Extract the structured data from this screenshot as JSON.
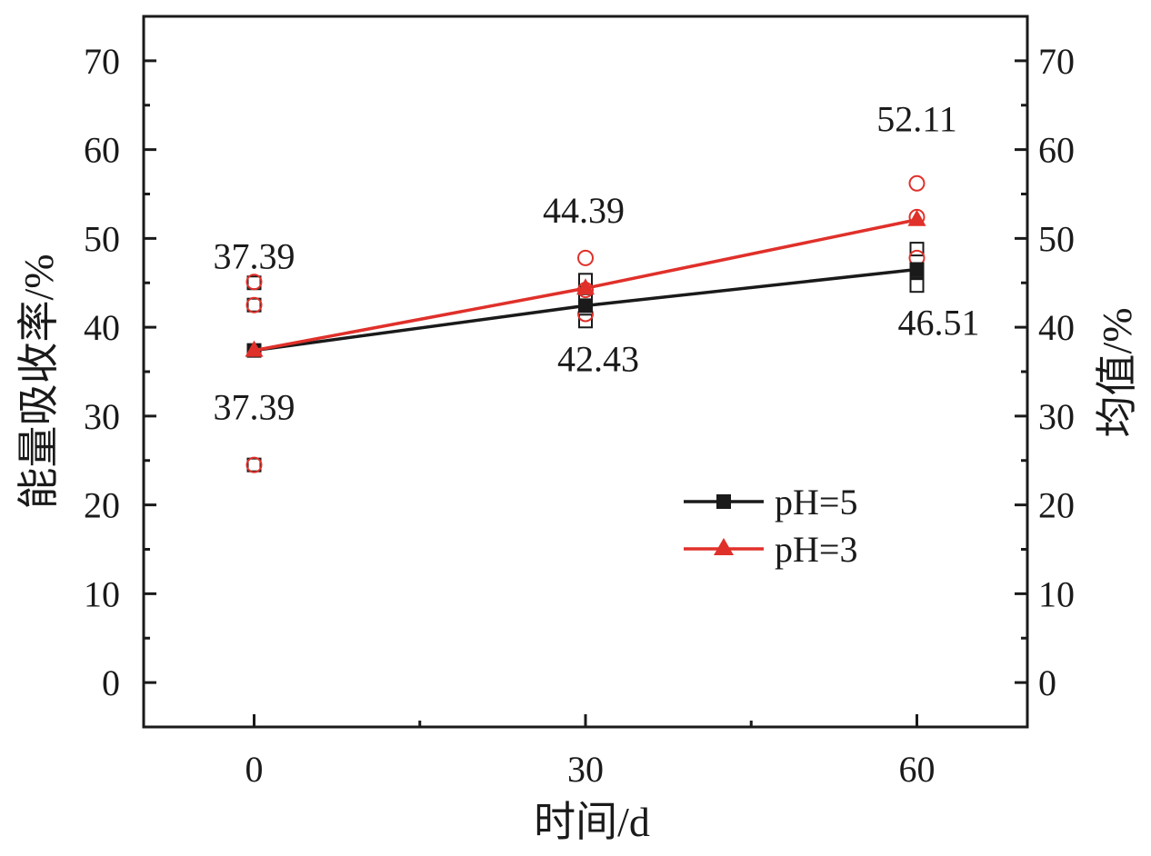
{
  "chart_data": {
    "type": "line",
    "title": "",
    "xlabel": "时间/d",
    "ylabel_left": "能量吸收率/%",
    "ylabel_right": "均值/%",
    "x_ticks": [
      0,
      30,
      60
    ],
    "y_ticks": [
      0,
      10,
      20,
      30,
      40,
      50,
      60,
      70
    ],
    "xlim": [
      -10,
      70
    ],
    "ylim": [
      -5,
      75
    ],
    "grid": false,
    "legend_position": "lower-right",
    "series": [
      {
        "name": "pH=5",
        "color": "#1a1a1a",
        "marker": "square",
        "x": [
          0,
          30,
          60
        ],
        "y": [
          37.39,
          42.43,
          46.51
        ],
        "value_labels": [
          "37.39",
          "42.43",
          "46.51"
        ],
        "samples": [
          {
            "x": 0,
            "y": [
              45.0,
              42.5,
              24.5
            ]
          },
          {
            "x": 30,
            "y": [
              45.3,
              43.0,
              40.7
            ]
          },
          {
            "x": 60,
            "y": [
              48.8,
              46.3,
              44.7
            ]
          }
        ]
      },
      {
        "name": "pH=3",
        "color": "#e0302a",
        "marker": "triangle",
        "x": [
          0,
          30,
          60
        ],
        "y": [
          37.39,
          44.39,
          52.11
        ],
        "value_labels": [
          "37.39",
          "44.39",
          "52.11"
        ],
        "samples": [
          {
            "x": 0,
            "y": [
              45.1,
              42.5,
              24.5
            ]
          },
          {
            "x": 30,
            "y": [
              47.8,
              44.2,
              41.5
            ]
          },
          {
            "x": 60,
            "y": [
              56.2,
              52.4,
              47.8
            ]
          }
        ]
      }
    ]
  }
}
